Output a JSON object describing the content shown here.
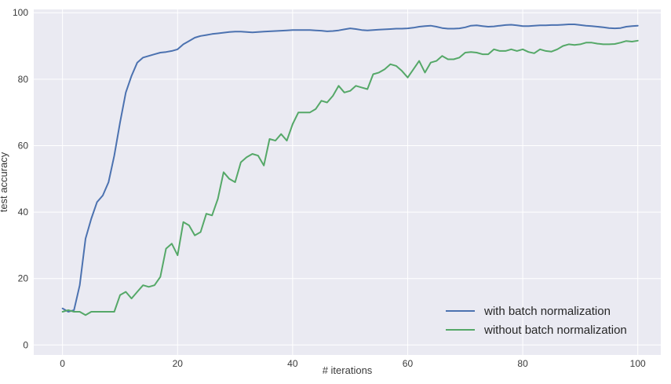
{
  "chart_data": {
    "type": "line",
    "title": "",
    "xlabel": "# iterations",
    "ylabel": "test accuracy",
    "xlim": [
      -5,
      104
    ],
    "ylim": [
      -3,
      101
    ],
    "xticks": [
      0,
      20,
      40,
      60,
      80,
      100
    ],
    "yticks": [
      0,
      20,
      40,
      60,
      80,
      100
    ],
    "grid": true,
    "legend_position": "bottom-right",
    "background": "#eaeaf2",
    "series": [
      {
        "name": "with batch normalization",
        "color": "#4c72b0",
        "x": [
          0,
          1,
          2,
          3,
          4,
          5,
          6,
          7,
          8,
          9,
          10,
          11,
          12,
          13,
          14,
          15,
          16,
          17,
          18,
          19,
          20,
          21,
          22,
          23,
          24,
          25,
          26,
          27,
          28,
          29,
          30,
          31,
          32,
          33,
          34,
          35,
          36,
          37,
          38,
          39,
          40,
          41,
          42,
          43,
          44,
          45,
          46,
          47,
          48,
          49,
          50,
          51,
          52,
          53,
          54,
          55,
          56,
          57,
          58,
          59,
          60,
          61,
          62,
          63,
          64,
          65,
          66,
          67,
          68,
          69,
          70,
          71,
          72,
          73,
          74,
          75,
          76,
          77,
          78,
          79,
          80,
          81,
          82,
          83,
          84,
          85,
          86,
          87,
          88,
          89,
          90,
          91,
          92,
          93,
          94,
          95,
          96,
          97,
          98,
          99,
          100
        ],
        "y": [
          11,
          10,
          10.5,
          18,
          32,
          38,
          43,
          45,
          49,
          57,
          67,
          76,
          81,
          85,
          86.5,
          87,
          87.5,
          88,
          88.2,
          88.5,
          89,
          90.5,
          91.5,
          92.5,
          93,
          93.3,
          93.6,
          93.8,
          94,
          94.2,
          94.3,
          94.3,
          94.2,
          94.1,
          94.2,
          94.3,
          94.4,
          94.5,
          94.6,
          94.7,
          94.8,
          94.8,
          94.8,
          94.8,
          94.7,
          94.6,
          94.4,
          94.5,
          94.7,
          95,
          95.3,
          95.1,
          94.8,
          94.7,
          94.8,
          94.9,
          95,
          95.1,
          95.2,
          95.2,
          95.3,
          95.5,
          95.8,
          96,
          96.1,
          95.8,
          95.4,
          95.2,
          95.2,
          95.3,
          95.6,
          96.1,
          96.2,
          96,
          95.8,
          95.9,
          96.1,
          96.3,
          96.4,
          96.2,
          96,
          96,
          96.1,
          96.2,
          96.2,
          96.3,
          96.3,
          96.4,
          96.5,
          96.5,
          96.3,
          96.1,
          96,
          95.8,
          95.6,
          95.4,
          95.3,
          95.4,
          95.8,
          96,
          96.1
        ]
      },
      {
        "name": "without batch normalization",
        "color": "#55a868",
        "x": [
          0,
          1,
          2,
          3,
          4,
          5,
          6,
          7,
          8,
          9,
          10,
          11,
          12,
          13,
          14,
          15,
          16,
          17,
          18,
          19,
          20,
          21,
          22,
          23,
          24,
          25,
          26,
          27,
          28,
          29,
          30,
          31,
          32,
          33,
          34,
          35,
          36,
          37,
          38,
          39,
          40,
          41,
          42,
          43,
          44,
          45,
          46,
          47,
          48,
          49,
          50,
          51,
          52,
          53,
          54,
          55,
          56,
          57,
          58,
          59,
          60,
          61,
          62,
          63,
          64,
          65,
          66,
          67,
          68,
          69,
          70,
          71,
          72,
          73,
          74,
          75,
          76,
          77,
          78,
          79,
          80,
          81,
          82,
          83,
          84,
          85,
          86,
          87,
          88,
          89,
          90,
          91,
          92,
          93,
          94,
          95,
          96,
          97,
          98,
          99,
          100
        ],
        "y": [
          10,
          10.5,
          10,
          10,
          9,
          10,
          10,
          10,
          10,
          10,
          15,
          16,
          14,
          16,
          18,
          17.5,
          18,
          20.5,
          29,
          30.5,
          27,
          37,
          36,
          33,
          34,
          39.5,
          39,
          44,
          52,
          50,
          49,
          55,
          56.5,
          57.5,
          57,
          54,
          62,
          61.5,
          63.5,
          61.5,
          66.5,
          70,
          70,
          70,
          71,
          73.5,
          73,
          75,
          78,
          76,
          76.5,
          78,
          77.5,
          77,
          81.5,
          82,
          83,
          84.5,
          84,
          82.5,
          80.5,
          83,
          85.5,
          82,
          85,
          85.5,
          87,
          86,
          86,
          86.5,
          88,
          88.2,
          88,
          87.5,
          87.5,
          89,
          88.5,
          88.5,
          89,
          88.5,
          89,
          88.2,
          87.8,
          89,
          88.5,
          88.3,
          89,
          90,
          90.5,
          90.3,
          90.5,
          91,
          91,
          90.7,
          90.5,
          90.5,
          90.6,
          91,
          91.5,
          91.3,
          91.6
        ]
      }
    ]
  }
}
